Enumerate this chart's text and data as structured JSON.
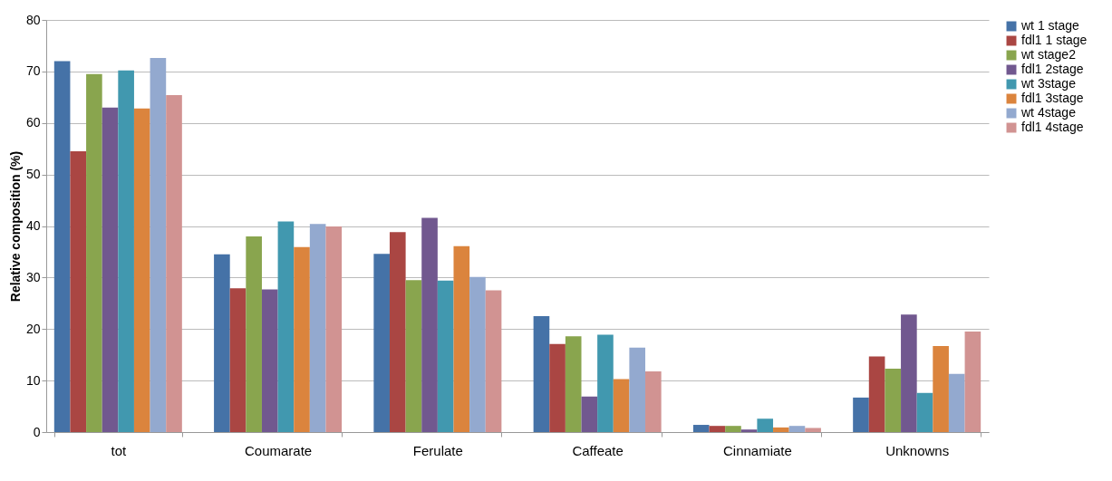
{
  "chart_data": {
    "type": "bar",
    "ylabel": "Relative composition (%)",
    "categories": [
      "tot",
      "Coumarate",
      "Ferulate",
      "Caffeate",
      "Cinnamiate",
      "Unknowns"
    ],
    "series": [
      {
        "name": "wt 1 stage",
        "color": "#4572a7",
        "values": [
          72,
          34.5,
          34.6,
          22.5,
          1.4,
          6.7
        ]
      },
      {
        "name": "fdl1 1 stage",
        "color": "#aa4643",
        "values": [
          54.5,
          27.9,
          38.8,
          17.1,
          1.2,
          14.7
        ]
      },
      {
        "name": "wt stage2",
        "color": "#89a54e",
        "values": [
          69.5,
          38,
          29.5,
          18.6,
          1.2,
          12.3
        ]
      },
      {
        "name": "fdl1 2stage",
        "color": "#71588f",
        "values": [
          63,
          27.7,
          41.6,
          6.9,
          0.5,
          22.8
        ]
      },
      {
        "name": "wt 3stage",
        "color": "#4198af",
        "values": [
          70.2,
          40.9,
          29.4,
          18.9,
          2.6,
          7.6
        ]
      },
      {
        "name": "fdl1 3stage",
        "color": "#db843d",
        "values": [
          62.8,
          35.9,
          36.1,
          10.3,
          0.9,
          16.7
        ]
      },
      {
        "name": "wt 4stage",
        "color": "#93a9cf",
        "values": [
          72.6,
          40.4,
          30.1,
          16.4,
          1.2,
          11.3
        ]
      },
      {
        "name": "fdl1 4stage",
        "color": "#d19392",
        "values": [
          65.4,
          39.9,
          27.5,
          11.8,
          0.8,
          19.5
        ]
      }
    ],
    "ylim": [
      0,
      80
    ],
    "yticks": [
      0,
      10,
      20,
      30,
      40,
      50,
      60,
      70,
      80
    ],
    "grid": "y",
    "legend": "right"
  }
}
